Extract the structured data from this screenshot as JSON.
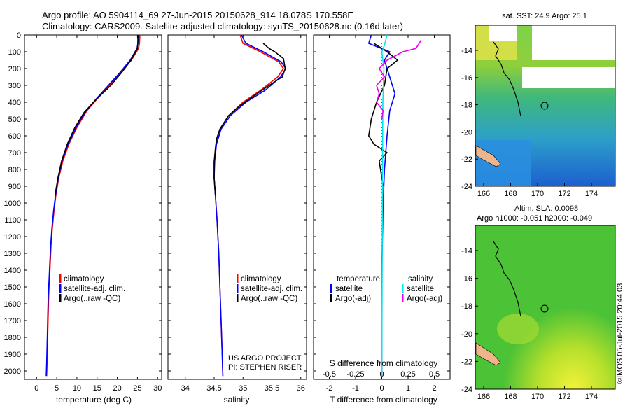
{
  "title": {
    "line1": "Argo profile: AO 5904114_69 27-Jun-2015 20150628_914 18.078S 170.558E",
    "line2": "Climatology: CARS2009. Satellite-adjusted climatology: synTS_20150628.nc (0.16d later)"
  },
  "colors": {
    "climatology": "#ff0000",
    "satellite": "#0000ff",
    "argo": "#000000",
    "sat_salinity": "#00e5ee",
    "argo_salinity": "#ee00ee"
  },
  "credit": {
    "line1": "US ARGO PROJECT",
    "line2": "PI: STEPHEN RISER"
  },
  "stamp": "©IMOS 05-Jul-2015 20:44:03",
  "map1": {
    "title": "sat. SST: 24.9 Argo: 25.1",
    "x_ticks": [
      "166",
      "168",
      "170",
      "172",
      "174"
    ],
    "y_ticks": [
      "-14",
      "-16",
      "-18",
      "-20",
      "-22",
      "-24"
    ]
  },
  "map2": {
    "title_line1": "Altim. SLA: 0.0098",
    "title_line2": "Argo h1000: -0.051 h2000: -0.049",
    "x_ticks": [
      "166",
      "168",
      "170",
      "172",
      "174"
    ],
    "y_ticks": [
      "-14",
      "-16",
      "-18",
      "-20",
      "-22",
      "-24"
    ]
  },
  "chart_data": [
    {
      "type": "line",
      "xlabel": "temperature (deg C)",
      "ylabel": "",
      "xlim": [
        -3,
        31
      ],
      "ylim": [
        2050,
        0
      ],
      "x_ticks": [
        0,
        5,
        10,
        15,
        20,
        25,
        30
      ],
      "y_ticks": [
        0,
        100,
        200,
        300,
        400,
        500,
        600,
        700,
        800,
        900,
        1000,
        1100,
        1200,
        1300,
        1400,
        1500,
        1600,
        1700,
        1800,
        1900,
        2000
      ],
      "legend": [
        "climatology",
        "satellite-adj. clim.",
        "Argo(..raw -QC)"
      ],
      "legend_position": "lower-center",
      "series": [
        {
          "name": "climatology",
          "color": "#ff0000",
          "points": [
            [
              25.6,
              0
            ],
            [
              25.5,
              50
            ],
            [
              25.3,
              80
            ],
            [
              23.5,
              150
            ],
            [
              21,
              220
            ],
            [
              18,
              300
            ],
            [
              15,
              380
            ],
            [
              12.5,
              450
            ],
            [
              10,
              550
            ],
            [
              8,
              650
            ],
            [
              6.5,
              750
            ],
            [
              5.5,
              850
            ],
            [
              4.8,
              950
            ],
            [
              4.3,
              1050
            ],
            [
              3.9,
              1150
            ],
            [
              3.6,
              1250
            ],
            [
              3.4,
              1350
            ],
            [
              3.2,
              1450
            ],
            [
              3.0,
              1550
            ],
            [
              2.9,
              1650
            ],
            [
              2.8,
              1750
            ],
            [
              2.7,
              1850
            ],
            [
              2.6,
              1950
            ],
            [
              2.5,
              2030
            ]
          ]
        },
        {
          "name": "satellite-adj. clim.",
          "color": "#0000ff",
          "points": [
            [
              25.2,
              0
            ],
            [
              25.1,
              50
            ],
            [
              24.9,
              80
            ],
            [
              23.2,
              150
            ],
            [
              20.8,
              220
            ],
            [
              17.8,
              300
            ],
            [
              14.8,
              380
            ],
            [
              12.3,
              450
            ],
            [
              9.8,
              550
            ],
            [
              7.8,
              650
            ],
            [
              6.3,
              750
            ],
            [
              5.4,
              850
            ],
            [
              4.7,
              950
            ],
            [
              4.2,
              1050
            ],
            [
              3.8,
              1150
            ],
            [
              3.5,
              1250
            ],
            [
              3.3,
              1350
            ],
            [
              3.1,
              1450
            ],
            [
              2.9,
              1550
            ],
            [
              2.8,
              1650
            ],
            [
              2.7,
              1750
            ],
            [
              2.6,
              1850
            ],
            [
              2.5,
              1950
            ],
            [
              2.4,
              2030
            ]
          ]
        },
        {
          "name": "Argo(..raw -QC)",
          "color": "#000000",
          "points": [
            [
              25.1,
              0
            ],
            [
              25.1,
              50
            ],
            [
              25.0,
              80
            ],
            [
              23.4,
              150
            ],
            [
              21.2,
              220
            ],
            [
              18.4,
              300
            ],
            [
              14.5,
              390
            ],
            [
              11.8,
              460
            ],
            [
              9.5,
              550
            ],
            [
              7.6,
              650
            ],
            [
              6.2,
              750
            ],
            [
              5.3,
              850
            ],
            [
              4.6,
              950
            ]
          ]
        }
      ]
    },
    {
      "type": "line",
      "xlabel": "salinity",
      "ylabel": "",
      "xlim": [
        33.7,
        36.1
      ],
      "ylim": [
        2050,
        0
      ],
      "x_ticks": [
        34,
        34.5,
        35,
        35.5,
        36
      ],
      "legend": [
        "climatology",
        "satellite-adj. clim.",
        "Argo(..raw -QC)"
      ],
      "legend_position": "lower-center",
      "series": [
        {
          "name": "climatology",
          "color": "#ff0000",
          "points": [
            [
              34.95,
              0
            ],
            [
              35.0,
              50
            ],
            [
              35.3,
              100
            ],
            [
              35.62,
              160
            ],
            [
              35.7,
              200
            ],
            [
              35.6,
              250
            ],
            [
              35.3,
              330
            ],
            [
              35.0,
              400
            ],
            [
              34.75,
              480
            ],
            [
              34.6,
              560
            ],
            [
              34.53,
              650
            ],
            [
              34.5,
              750
            ],
            [
              34.5,
              850
            ],
            [
              34.52,
              950
            ],
            [
              34.55,
              1100
            ],
            [
              34.58,
              1300
            ],
            [
              34.6,
              1500
            ],
            [
              34.62,
              1700
            ],
            [
              34.64,
              1900
            ],
            [
              34.65,
              2030
            ]
          ]
        },
        {
          "name": "satellite-adj. clim.",
          "color": "#0000ff",
          "points": [
            [
              34.97,
              0
            ],
            [
              35.05,
              50
            ],
            [
              35.35,
              100
            ],
            [
              35.66,
              160
            ],
            [
              35.74,
              200
            ],
            [
              35.65,
              250
            ],
            [
              35.38,
              330
            ],
            [
              35.05,
              400
            ],
            [
              34.78,
              480
            ],
            [
              34.62,
              560
            ],
            [
              34.54,
              650
            ],
            [
              34.51,
              750
            ],
            [
              34.5,
              850
            ],
            [
              34.52,
              950
            ],
            [
              34.55,
              1100
            ],
            [
              34.58,
              1300
            ],
            [
              34.6,
              1500
            ],
            [
              34.62,
              1700
            ],
            [
              34.64,
              1900
            ],
            [
              34.65,
              2030
            ]
          ]
        },
        {
          "name": "Argo(..raw -QC)",
          "color": "#000000",
          "points": [
            [
              35.35,
              50
            ],
            [
              35.45,
              80
            ],
            [
              35.55,
              100
            ],
            [
              35.7,
              140
            ],
            [
              35.73,
              200
            ],
            [
              35.68,
              250
            ],
            [
              35.45,
              300
            ],
            [
              35.2,
              360
            ],
            [
              34.95,
              420
            ],
            [
              34.75,
              480
            ],
            [
              34.6,
              560
            ],
            [
              34.54,
              620
            ],
            [
              34.52,
              680
            ],
            [
              34.5,
              760
            ],
            [
              34.5,
              850
            ],
            [
              34.52,
              950
            ]
          ]
        }
      ]
    },
    {
      "type": "line",
      "xlabel": "T difference from climatology",
      "xlabel_top": "S difference from climatology",
      "ylabel": "",
      "xlim": [
        -2.6,
        2.6
      ],
      "ylim": [
        2050,
        0
      ],
      "x_ticks": [
        -2,
        -1,
        0,
        1,
        2
      ],
      "x_ticks_top": [
        "-0.5",
        "-0.25",
        "0",
        "0.25",
        "0.5"
      ],
      "legend": {
        "temperature_header": "temperature",
        "salinity_header": "salinity",
        "temperature": [
          "satellite",
          "Argo(-adj)"
        ],
        "salinity": [
          "satellite",
          "Argo(-adj)"
        ]
      },
      "legend_position": "lower-center",
      "series": [
        {
          "name": "satellite",
          "color": "#0000ff",
          "points": [
            [
              -0.4,
              0
            ],
            [
              -0.5,
              50
            ],
            [
              0.3,
              100
            ],
            [
              0.1,
              150
            ],
            [
              0.3,
              250
            ],
            [
              0.5,
              350
            ],
            [
              0.3,
              450
            ],
            [
              0.2,
              600
            ],
            [
              0.1,
              800
            ],
            [
              0.05,
              1000
            ],
            [
              0,
              1400
            ],
            [
              0,
              2030
            ]
          ]
        },
        {
          "name": "Argo(-adj)",
          "color": "#000000",
          "points": [
            [
              -0.3,
              50
            ],
            [
              0.2,
              100
            ],
            [
              0.6,
              150
            ],
            [
              0.2,
              200
            ],
            [
              0.1,
              300
            ],
            [
              -0.2,
              400
            ],
            [
              -0.4,
              500
            ],
            [
              -0.5,
              600
            ],
            [
              -0.3,
              650
            ],
            [
              0.2,
              700
            ],
            [
              -0.1,
              750
            ],
            [
              0.05,
              900
            ]
          ]
        },
        {
          "name": "satellite",
          "color": "#00e5ee",
          "points": [
            [
              0.2,
              0
            ],
            [
              0.1,
              60
            ],
            [
              0,
              100
            ],
            [
              0.08,
              200
            ],
            [
              0.04,
              400
            ],
            [
              0.03,
              700
            ],
            [
              0.02,
              1000
            ],
            [
              0.01,
              1500
            ],
            [
              0,
              2030
            ]
          ]
        },
        {
          "name": "Argo(-adj)",
          "color": "#ee00ee",
          "points": [
            [
              1.5,
              30
            ],
            [
              1.3,
              80
            ],
            [
              0.8,
              100
            ],
            [
              0.2,
              150
            ],
            [
              -0.1,
              200
            ],
            [
              0.1,
              250
            ],
            [
              -0.2,
              300
            ],
            [
              -0.1,
              350
            ],
            [
              -0.2,
              400
            ],
            [
              0.05,
              450
            ],
            [
              0,
              500
            ]
          ]
        }
      ]
    }
  ]
}
